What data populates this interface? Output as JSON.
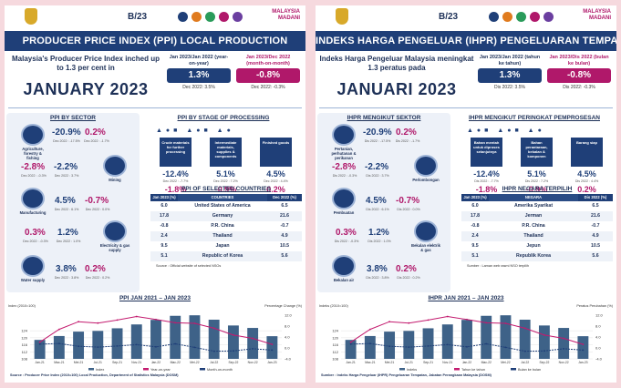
{
  "colors": {
    "navy": "#1f3f78",
    "magenta": "#b0186a",
    "frame": "#f6d9de",
    "bar": "#3e6288",
    "line": "#c31a6e",
    "line_mm": "#1f3f78"
  },
  "panels": [
    {
      "lang": "en",
      "banner": "PRODUCER PRICE INDEX (PPI) LOCAL PRODUCTION",
      "headline": "Malaysia's Producer Price Index inched up to 1.3 per cent in",
      "month": "JANUARY 2023",
      "kpi_yoy": {
        "label": "Jan 2023/Jan 2022 (year-on-year)",
        "value": "1.3%",
        "prev": "Dec 2022: 3.5%"
      },
      "kpi_mom": {
        "label": "Jan 2023/Dec 2022 (month-on-month)",
        "value": "-0.8%",
        "prev": "Dec 2022: -0.3%"
      },
      "sector_title": "PPI BY SECTOR",
      "sectors": [
        {
          "label": "Agriculture, forestry & fishing",
          "icon": "palm-tree-icon",
          "yoy": "-20.9%",
          "yoy_prev": "Dec 2022 : -17.5%",
          "mom": "0.2%",
          "mom_prev": "Dec 2022 : -1.7%"
        },
        {
          "label": "Mining",
          "icon": "oil-rig-icon",
          "yoy": "-2.8%",
          "yoy_prev": "Dec 2022 : -0.3%",
          "mom": "-2.2%",
          "mom_prev": "Dec 2022 : 3.7%"
        },
        {
          "label": "Manufacturing",
          "icon": "factory-icon",
          "yoy": "4.5%",
          "yoy_prev": "Dec 2022 : 6.1%",
          "mom": "-0.7%",
          "mom_prev": "Dec 2022 : 0.0%"
        },
        {
          "label": "Electricity & gas supply",
          "icon": "electricity-tower-icon",
          "yoy": "0.3%",
          "yoy_prev": "Dec 2022 : -0.3%",
          "mom": "1.2%",
          "mom_prev": "Dec 2022 : 1.0%"
        },
        {
          "label": "Water supply",
          "icon": "water-tap-icon",
          "yoy": "3.8%",
          "yoy_prev": "Dec 2022 : 3.8%",
          "mom": "0.2%",
          "mom_prev": "Dec 2022 : 0.2%"
        }
      ],
      "stage_title": "PPI BY STAGE OF PROCESSING",
      "stages": [
        {
          "label": "Crude materials for further processing",
          "yoy": "-12.4%",
          "yoy_prev": "Dec 2022 : -7.7%",
          "mom": "-1.8%",
          "mom_prev": "Dec 2022 : -2.5%"
        },
        {
          "label": "Intermediate materials, supplies & components",
          "yoy": "5.1%",
          "yoy_prev": "Dec 2022 : 7.2%",
          "mom": "-0.9%",
          "mom_prev": "Dec 2022 : -0.2%"
        },
        {
          "label": "Finished goods",
          "yoy": "4.5%",
          "yoy_prev": "Dec 2022 : 4.4%",
          "mom": "0.2%",
          "mom_prev": "Dec 2022 : 0.8%"
        }
      ],
      "countries_title": "PPI OF SELECTED COUNTRIES",
      "countries_head": [
        "Jan 2023 (%)",
        "COUNTRIES",
        "Dec 2022 (%)"
      ],
      "countries": [
        {
          "jan": "6.0",
          "name": "United States of America",
          "dec": "6.5"
        },
        {
          "jan": "17.8",
          "name": "Germany",
          "dec": "21.6"
        },
        {
          "jan": "-0.8",
          "name": "P.R. China",
          "dec": "-0.7"
        },
        {
          "jan": "2.4",
          "name": "Thailand",
          "dec": "4.9"
        },
        {
          "jan": "9.5",
          "name": "Japan",
          "dec": "10.5"
        },
        {
          "jan": "5.1",
          "name": "Republic of Korea",
          "dec": "5.6"
        }
      ],
      "countries_source": "Source : Official website of selected NSOs",
      "chart_title": "PPI JAN 2021 – JAN 2023",
      "chart_left_label": "Index (2010=100)",
      "chart_right_label": "Percentage Change (%)",
      "chart_legend": [
        "Index",
        "Year-on-year",
        "Month-on-month"
      ],
      "source": "Source : Producer Price Index (2010=100) Local Production, Department of Statistics Malaysia (DOSM)"
    },
    {
      "lang": "ms",
      "banner": "INDEKS HARGA PENGELUAR (IHPR) PENGELUARAN TEMPATAN",
      "headline": "Indeks Harga Pengeluar Malaysia meningkat 1.3 peratus pada",
      "month": "JANUARI 2023",
      "kpi_yoy": {
        "label": "Jan 2023/Jan 2022 (tahun ke tahun)",
        "value": "1.3%",
        "prev": "Dis 2022: 3.5%"
      },
      "kpi_mom": {
        "label": "Jan 2023/Dis 2022 (bulan ke bulan)",
        "value": "-0.8%",
        "prev": "Dis 2022: -0.3%"
      },
      "sector_title": "IHPR MENGIKUT SEKTOR",
      "sectors": [
        {
          "label": "Pertanian, perhutanan & perikanan",
          "icon": "palm-tree-icon",
          "yoy": "-20.9%",
          "yoy_prev": "Dis 2022 : -17.5%",
          "mom": "0.2%",
          "mom_prev": "Dis 2022 : -1.7%"
        },
        {
          "label": "Perlombongan",
          "icon": "oil-rig-icon",
          "yoy": "-2.8%",
          "yoy_prev": "Dis 2022 : -0.3%",
          "mom": "-2.2%",
          "mom_prev": "Dis 2022 : 3.7%"
        },
        {
          "label": "Pembuatan",
          "icon": "factory-icon",
          "yoy": "4.5%",
          "yoy_prev": "Dis 2022 : 6.1%",
          "mom": "-0.7%",
          "mom_prev": "Dis 2022 : 0.0%"
        },
        {
          "label": "Bekalan elektrik & gas",
          "icon": "electricity-tower-icon",
          "yoy": "0.3%",
          "yoy_prev": "Dis 2022 : -0.3%",
          "mom": "1.2%",
          "mom_prev": "Dis 2022 : 1.0%"
        },
        {
          "label": "Bekalan air",
          "icon": "water-tap-icon",
          "yoy": "3.8%",
          "yoy_prev": "Dis 2022 : 3.8%",
          "mom": "0.2%",
          "mom_prev": "Dis 2022 : 0.2%"
        }
      ],
      "stage_title": "IHPR MENGIKUT PERINGKAT PEMPROSESAN",
      "stages": [
        {
          "label": "Bahan mentah untuk diproses selanjutnya",
          "yoy": "-12.4%",
          "yoy_prev": "Dis 2022 : -7.7%",
          "mom": "-1.8%",
          "mom_prev": "Dis 2022 : -2.5%"
        },
        {
          "label": "Bahan perantaraan, bekalan & komponen",
          "yoy": "5.1%",
          "yoy_prev": "Dis 2022 : 7.2%",
          "mom": "-0.9%",
          "mom_prev": "Dis 2022 : -0.2%"
        },
        {
          "label": "Barang siap",
          "yoy": "4.5%",
          "yoy_prev": "Dis 2022 : 4.4%",
          "mom": "0.2%",
          "mom_prev": "Dis 2022 : 0.8%"
        }
      ],
      "countries_title": "IHPR NEGARA TERPILIH",
      "countries_head": [
        "Jan 2023 (%)",
        "NEGARA",
        "Dis 2022 (%)"
      ],
      "countries": [
        {
          "jan": "6.0",
          "name": "Amerika Syarikat",
          "dec": "6.5"
        },
        {
          "jan": "17.8",
          "name": "Jerman",
          "dec": "21.6"
        },
        {
          "jan": "-0.8",
          "name": "P.R. China",
          "dec": "-0.7"
        },
        {
          "jan": "2.4",
          "name": "Thailand",
          "dec": "4.9"
        },
        {
          "jan": "9.5",
          "name": "Jepun",
          "dec": "10.5"
        },
        {
          "jan": "5.1",
          "name": "Republik Korea",
          "dec": "5.6"
        }
      ],
      "countries_source": "Sumber : Laman web rasmi NSO terpilih",
      "chart_title": "IHPR JAN 2021 – JAN 2023",
      "chart_left_label": "Indeks (2010=100)",
      "chart_right_label": "Peratus Perubahan (%)",
      "chart_legend": [
        "Indeks",
        "Tahun ke tahun",
        "Bulan ke bulan"
      ],
      "source": "Sumber : Indeks Harga Pengeluar (IHPR) Pengeluaran Tempatan, Jabatan Perangkaan Malaysia (DOSM)"
    }
  ],
  "chart_data": {
    "type": "bar",
    "categories": [
      "Jan-21",
      "Mac-21",
      "Mei-21",
      "Jul-21",
      "Sep-21",
      "Nov-21",
      "Jan-22",
      "Mac-22",
      "Mei-22",
      "Jul-22",
      "Sep-22",
      "Nov-22",
      "Jan-23"
    ],
    "series": [
      {
        "name": "Index",
        "values": [
          118.8,
          121.0,
          123.5,
          123.9,
          125.4,
          127.6,
          130.2,
          132.5,
          132.8,
          130.3,
          127.0,
          125.6,
          120.9
        ]
      },
      {
        "name": "Year-on-year",
        "values": [
          2.1,
          6.8,
          9.6,
          9.1,
          10.2,
          11.5,
          10.4,
          9.2,
          9.0,
          7.2,
          4.7,
          3.5,
          1.3
        ]
      },
      {
        "name": "Month-on-month",
        "values": [
          1.4,
          1.6,
          0.6,
          0.3,
          0.7,
          1.2,
          0.4,
          1.5,
          0.2,
          -1.2,
          -1.1,
          -0.3,
          -0.8
        ]
      }
    ],
    "yleft_ticks": [
      "124",
      "120",
      "116",
      "112",
      "108"
    ],
    "yright_ticks": [
      "12.0",
      "8.0",
      "4.0",
      "0.0",
      "-4.0"
    ],
    "ylim_left": [
      108,
      136
    ],
    "ylim_right": [
      -4,
      14
    ]
  }
}
